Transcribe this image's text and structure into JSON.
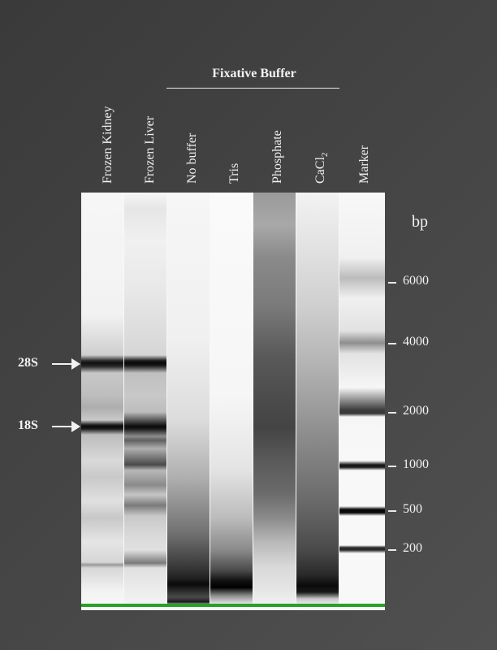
{
  "group_title": "Fixative Buffer",
  "lanes": [
    {
      "label": "Frozen Kidney"
    },
    {
      "label": "Frozen Liver"
    },
    {
      "label": "No buffer"
    },
    {
      "label": "Tris"
    },
    {
      "label": "Phosphate"
    },
    {
      "label": "CaCl",
      "subscript": "2"
    },
    {
      "label": "Marker"
    }
  ],
  "unit": "bp",
  "size_markers": [
    "6000",
    "4000",
    "2000",
    "1000",
    "500",
    "200"
  ],
  "band_labels": [
    "28S",
    "18S"
  ],
  "colors": {
    "background": "#444444",
    "gel": "#f8f8f8",
    "band": "#1a1a1a",
    "baseline": "#2aa02a"
  }
}
